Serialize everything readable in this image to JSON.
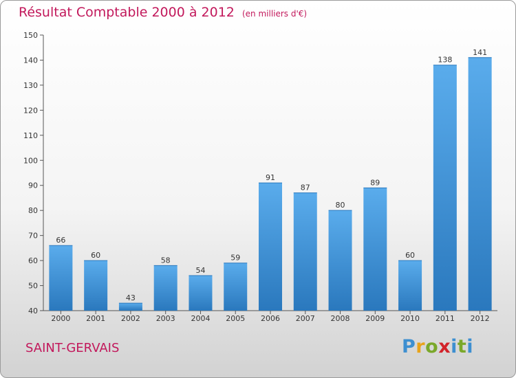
{
  "chart_data": {
    "type": "bar",
    "title": "Résultat Comptable 2000 à 2012",
    "subtitle": "(en milliers d'€)",
    "categories": [
      "2000",
      "2001",
      "2002",
      "2003",
      "2004",
      "2005",
      "2006",
      "2007",
      "2008",
      "2009",
      "2010",
      "2011",
      "2012"
    ],
    "values": [
      66,
      60,
      43,
      58,
      54,
      59,
      91,
      87,
      80,
      89,
      60,
      138,
      141
    ],
    "ylim": [
      40,
      150
    ],
    "yticks": [
      40,
      50,
      60,
      70,
      80,
      90,
      100,
      110,
      120,
      130,
      140,
      150
    ],
    "grid": false,
    "bar_color": "#3d94d6"
  },
  "footer": {
    "town": "SAINT-GERVAIS",
    "logo": "Proxiti"
  }
}
